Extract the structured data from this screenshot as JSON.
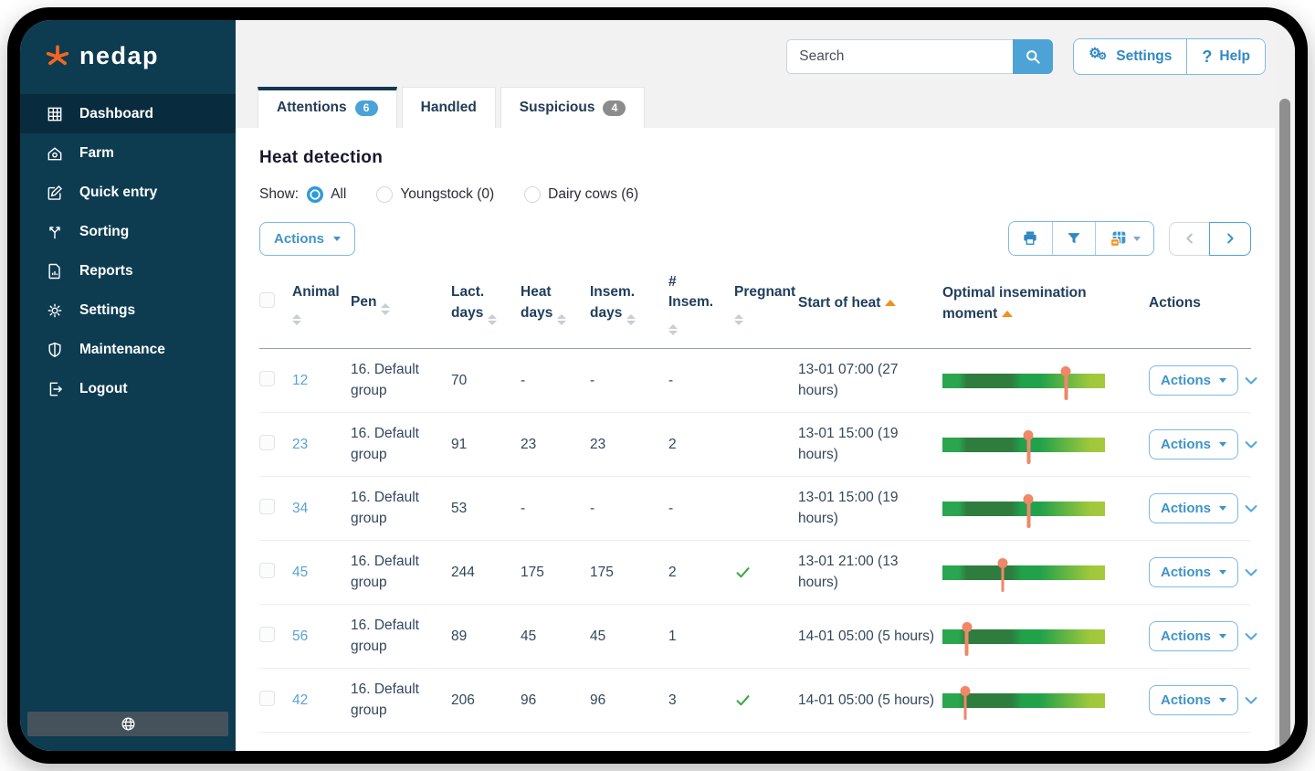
{
  "brand": {
    "name": "nedap"
  },
  "sidebar": {
    "items": [
      {
        "label": "Dashboard",
        "icon": "dashboard-grid-icon",
        "active": true
      },
      {
        "label": "Farm",
        "icon": "farm-barn-icon",
        "active": false
      },
      {
        "label": "Quick entry",
        "icon": "quick-entry-pencil-icon",
        "active": false
      },
      {
        "label": "Sorting",
        "icon": "sorting-split-arrows-icon",
        "active": false
      },
      {
        "label": "Reports",
        "icon": "report-document-icon",
        "active": false
      },
      {
        "label": "Settings",
        "icon": "gear-icon",
        "active": false
      },
      {
        "label": "Maintenance",
        "icon": "shield-icon",
        "active": false
      },
      {
        "label": "Logout",
        "icon": "logout-icon",
        "active": false
      }
    ],
    "footer_icon": "globe-icon"
  },
  "topbar": {
    "search_placeholder": "Search",
    "settings_label": "Settings",
    "help_label": "Help",
    "help_icon": "?"
  },
  "tabs": [
    {
      "label": "Attentions",
      "badge": "6",
      "active": true
    },
    {
      "label": "Handled",
      "badge": "",
      "active": false
    },
    {
      "label": "Suspicious",
      "badge": "4",
      "active": false
    }
  ],
  "page": {
    "title": "Heat detection",
    "show_label": "Show:",
    "filters": [
      {
        "label": "All",
        "selected": true
      },
      {
        "label": "Youngstock (0)",
        "selected": false
      },
      {
        "label": "Dairy cows (6)",
        "selected": false
      }
    ],
    "bulk_actions_label": "Actions"
  },
  "table": {
    "headers": [
      {
        "label": "",
        "type": "checkbox",
        "sort": "none"
      },
      {
        "label": "Animal",
        "sort": "both"
      },
      {
        "label": "Pen",
        "sort": "both"
      },
      {
        "label": "Lact. days",
        "sort": "both"
      },
      {
        "label": "Heat days",
        "sort": "both"
      },
      {
        "label": "Insem. days",
        "sort": "both"
      },
      {
        "label": "# Insem.",
        "sort": "both"
      },
      {
        "label": "Pregnant",
        "sort": "both"
      },
      {
        "label": "Start of heat",
        "sort": "asc"
      },
      {
        "label": "Optimal insemination moment",
        "sort": "asc"
      },
      {
        "label": "Actions",
        "sort": "none"
      },
      {
        "label": "",
        "type": "expand",
        "sort": "none"
      }
    ],
    "row_actions_label": "Actions",
    "rows": [
      {
        "animal": "12",
        "pen": "16. Default group",
        "lact_days": "70",
        "heat_days": "-",
        "insem_days": "-",
        "num_insem": "-",
        "pregnant": false,
        "start_of_heat": "13-01 07:00  (27 hours)",
        "optimal_marker": 0.76
      },
      {
        "animal": "23",
        "pen": "16. Default group",
        "lact_days": "91",
        "heat_days": "23",
        "insem_days": "23",
        "num_insem": "2",
        "pregnant": false,
        "start_of_heat": "13-01 15:00  (19 hours)",
        "optimal_marker": 0.53
      },
      {
        "animal": "34",
        "pen": "16. Default group",
        "lact_days": "53",
        "heat_days": "-",
        "insem_days": "-",
        "num_insem": "-",
        "pregnant": false,
        "start_of_heat": "13-01 15:00  (19 hours)",
        "optimal_marker": 0.53
      },
      {
        "animal": "45",
        "pen": "16. Default group",
        "lact_days": "244",
        "heat_days": "175",
        "insem_days": "175",
        "num_insem": "2",
        "pregnant": true,
        "start_of_heat": "13-01 21:00  (13 hours)",
        "optimal_marker": 0.37
      },
      {
        "animal": "56",
        "pen": "16. Default group",
        "lact_days": "89",
        "heat_days": "45",
        "insem_days": "45",
        "num_insem": "1",
        "pregnant": false,
        "start_of_heat": "14-01 05:00  (5 hours)",
        "optimal_marker": 0.15
      },
      {
        "animal": "42",
        "pen": "16. Default group",
        "lact_days": "206",
        "heat_days": "96",
        "insem_days": "96",
        "num_insem": "3",
        "pregnant": true,
        "start_of_heat": "14-01 05:00  (5 hours)",
        "optimal_marker": 0.14
      }
    ]
  },
  "colors": {
    "sidebar_teal": "#0d3c51",
    "brand_orange": "#f26522",
    "accent_blue": "#3f93c9",
    "button_blue": "#4da3d6",
    "badge_blue": "#4aa3d8",
    "badge_gray": "#8c8c8c",
    "check_green": "#3aa83f",
    "marker_salmon": "#ef8768",
    "sort_orange": "#f2901e",
    "bar_gradient": [
      "#2aa64f",
      "#2e7c3e",
      "#21a14a",
      "#a4ca3b"
    ]
  }
}
